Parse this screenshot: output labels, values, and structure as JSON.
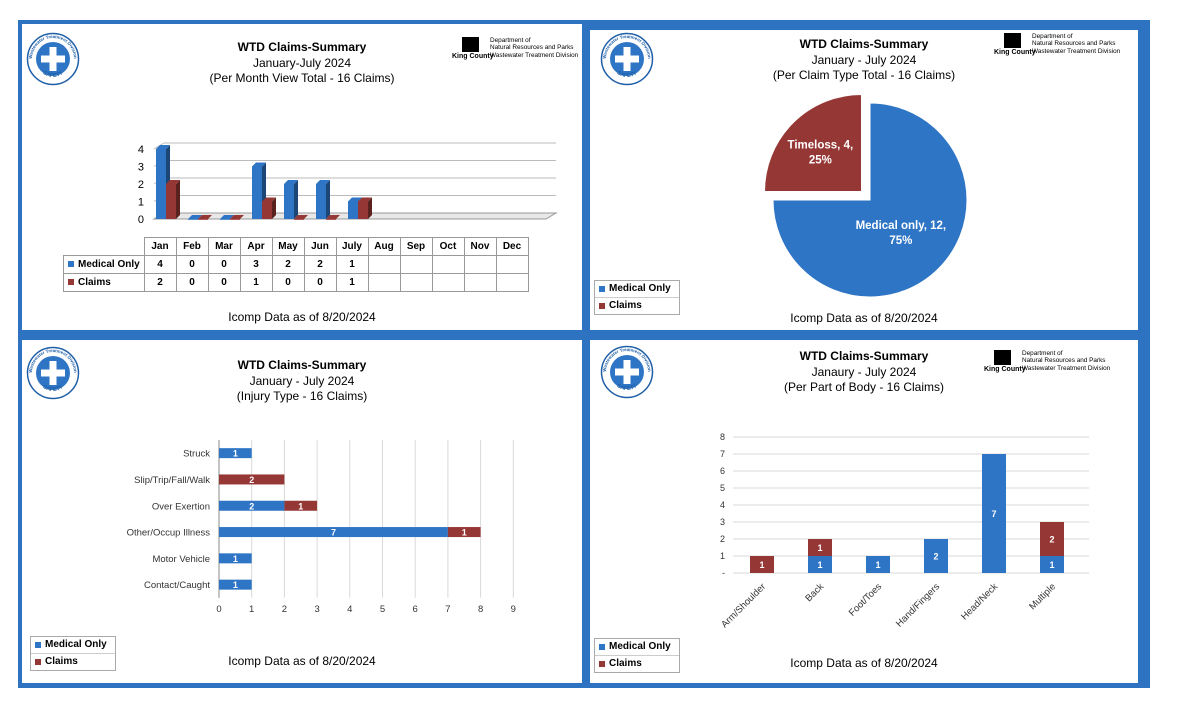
{
  "colors": {
    "medical": "#2e75c5",
    "claims": "#953735",
    "frame": "#2e73c2"
  },
  "badge": {
    "ring": "Wastewater Treatment Division",
    "center": "SAFETY"
  },
  "logo": {
    "name": "King County",
    "line1": "Department of",
    "line2": "Natural Resources and Parks",
    "line3": "Wastewater Treatment Division"
  },
  "panel1": {
    "title": "WTD Claims-Summary",
    "subtitle1": "January-July 2024",
    "subtitle2": "(Per Month View Total - 16 Claims)",
    "footer": "Icomp Data as of  8/20/2024"
  },
  "panel2": {
    "title": "WTD Claims-Summary",
    "subtitle1": "January - July 2024",
    "subtitle2": "(Per Claim Type Total - 16 Claims)",
    "footer": "Icomp Data as of  8/20/2024",
    "legend": [
      "Medical Only",
      "Claims"
    ]
  },
  "panel3": {
    "title": "WTD Claims-Summary",
    "subtitle1": "January - July 2024",
    "subtitle2": "(Injury Type - 16 Claims)",
    "footer": "Icomp Data as of 8/20/2024",
    "legend": [
      "Medical Only",
      "Claims"
    ]
  },
  "panel4": {
    "title": "WTD Claims-Summary",
    "subtitle1": "Janaury - July 2024",
    "subtitle2": "(Per Part of Body - 16 Claims)",
    "footer": "Icomp Data as of 8/20/2024",
    "legend": [
      "Medical Only",
      "Claims"
    ]
  },
  "chart_data": [
    {
      "type": "bar",
      "style": "3d-column-with-data-table",
      "categories": [
        "Jan",
        "Feb",
        "Mar",
        "Apr",
        "May",
        "Jun",
        "July",
        "Aug",
        "Sep",
        "Oct",
        "Nov",
        "Dec"
      ],
      "series": [
        {
          "name": "Medical Only",
          "values": [
            4,
            0,
            0,
            3,
            2,
            2,
            1,
            null,
            null,
            null,
            null,
            null
          ]
        },
        {
          "name": "Claims",
          "values": [
            2,
            0,
            0,
            1,
            0,
            0,
            1,
            null,
            null,
            null,
            null,
            null
          ]
        }
      ],
      "yticks": [
        "0",
        "1",
        "2",
        "3",
        "4"
      ],
      "ylim": [
        0,
        4.2
      ]
    },
    {
      "type": "pie",
      "exploded": "Timeloss",
      "slices": [
        {
          "label": "Medical only",
          "value": 12,
          "percent": "75%"
        },
        {
          "label": "Timeloss",
          "value": 4,
          "percent": "25%"
        }
      ]
    },
    {
      "type": "bar",
      "orientation": "horizontal",
      "stacked": true,
      "categories": [
        "Struck",
        "Slip/Trip/Fall/Walk",
        "Over Exertion",
        "Other/Occup Illness",
        "Motor Vehicle",
        "Contact/Caught"
      ],
      "series": [
        {
          "name": "Medical Only",
          "values": [
            1,
            0,
            2,
            7,
            1,
            1
          ]
        },
        {
          "name": "Claims",
          "values": [
            0,
            2,
            1,
            1,
            0,
            0
          ]
        }
      ],
      "xlim": [
        0,
        9
      ],
      "xticks": [
        "0",
        "1",
        "2",
        "3",
        "4",
        "5",
        "6",
        "7",
        "8",
        "9"
      ],
      "grid": "vertical"
    },
    {
      "type": "bar",
      "stacked": true,
      "categories": [
        "Arm/Shoulder",
        "Back",
        "Foot/Toes",
        "Hand/Fingers",
        "Head/Neck",
        "Multiple"
      ],
      "series": [
        {
          "name": "Medical Only",
          "values": [
            0,
            1,
            1,
            2,
            7,
            1
          ]
        },
        {
          "name": "Claims",
          "values": [
            1,
            1,
            0,
            0,
            0,
            2
          ]
        }
      ],
      "ylim": [
        0,
        8
      ],
      "yticks": [
        "-",
        "1",
        "2",
        "3",
        "4",
        "5",
        "6",
        "7",
        "8"
      ],
      "grid": "horizontal"
    }
  ]
}
